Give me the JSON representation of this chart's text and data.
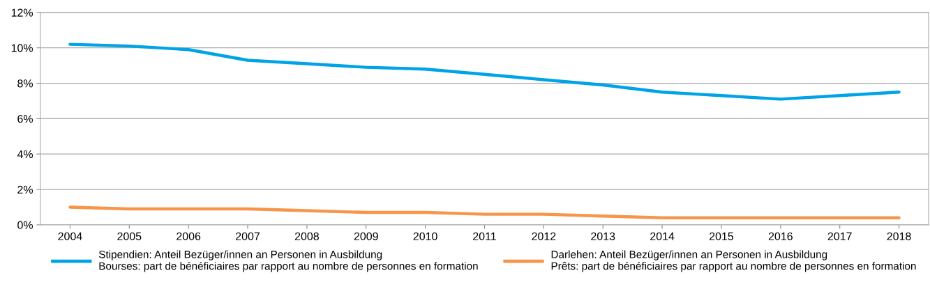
{
  "chart_data": {
    "type": "line",
    "categories": [
      "2004",
      "2005",
      "2006",
      "2007",
      "2008",
      "2009",
      "2010",
      "2011",
      "2012",
      "2013",
      "2014",
      "2015",
      "2016",
      "2017",
      "2018"
    ],
    "series": [
      {
        "name": "Stipendien: Anteil Bezüger/innen an Personen in Ausbildung\nBourses: part de bénéficiaires par rapport au nombre de personnes en formation",
        "color": "#00a3e6",
        "values": [
          10.2,
          10.1,
          9.9,
          9.3,
          9.1,
          8.9,
          8.8,
          8.5,
          8.2,
          7.9,
          7.5,
          7.3,
          7.1,
          7.3,
          7.5
        ]
      },
      {
        "name": "Darlehen: Anteil Bezüger/innen an Personen in Ausbildung\nPrêts: part de bénéficiaires par rapport au nombre de personnes en formation",
        "color": "#f7964a",
        "values": [
          1.0,
          0.9,
          0.9,
          0.9,
          0.8,
          0.7,
          0.7,
          0.6,
          0.6,
          0.5,
          0.4,
          0.4,
          0.4,
          0.4,
          0.4
        ]
      }
    ],
    "ylim": [
      0,
      12
    ],
    "yticks": [
      {
        "value": 0,
        "label": "0%"
      },
      {
        "value": 2,
        "label": "2%"
      },
      {
        "value": 4,
        "label": "4%"
      },
      {
        "value": 6,
        "label": "6%"
      },
      {
        "value": 8,
        "label": "8%"
      },
      {
        "value": 10,
        "label": "10%"
      },
      {
        "value": 12,
        "label": "12%"
      }
    ],
    "grid": "y",
    "legend": "bottom",
    "marker": "none",
    "line_style": "solid"
  }
}
